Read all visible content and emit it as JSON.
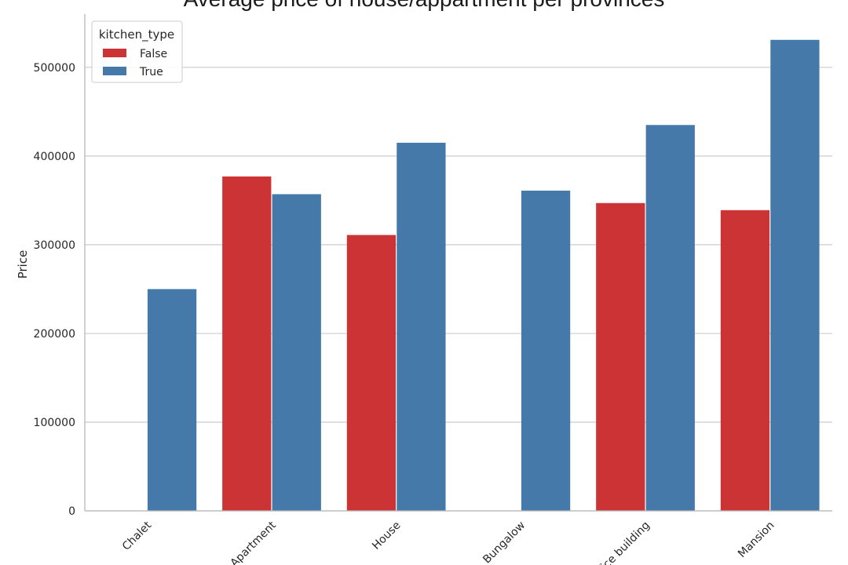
{
  "chart_data": {
    "type": "bar",
    "title": "Average price of house/appartment per provinces",
    "xlabel": "",
    "ylabel": "Price",
    "categories": [
      "Chalet",
      "Apartment",
      "House",
      "Bungalow",
      "Office building",
      "Mansion"
    ],
    "series": [
      {
        "name": "False",
        "color": "#cc3335",
        "values": [
          null,
          377000,
          311000,
          null,
          347000,
          339000
        ]
      },
      {
        "name": "True",
        "color": "#4579a9",
        "values": [
          250000,
          357000,
          415000,
          361000,
          435000,
          531000
        ]
      }
    ],
    "ylim": [
      0,
      560000
    ],
    "yticks": [
      0,
      100000,
      200000,
      300000,
      400000,
      500000
    ],
    "ytick_labels": [
      "0",
      "100000",
      "200000",
      "300000",
      "400000",
      "500000"
    ],
    "legend": {
      "title": "kitchen_type",
      "position": "top-left"
    },
    "grid": "horizontal"
  }
}
